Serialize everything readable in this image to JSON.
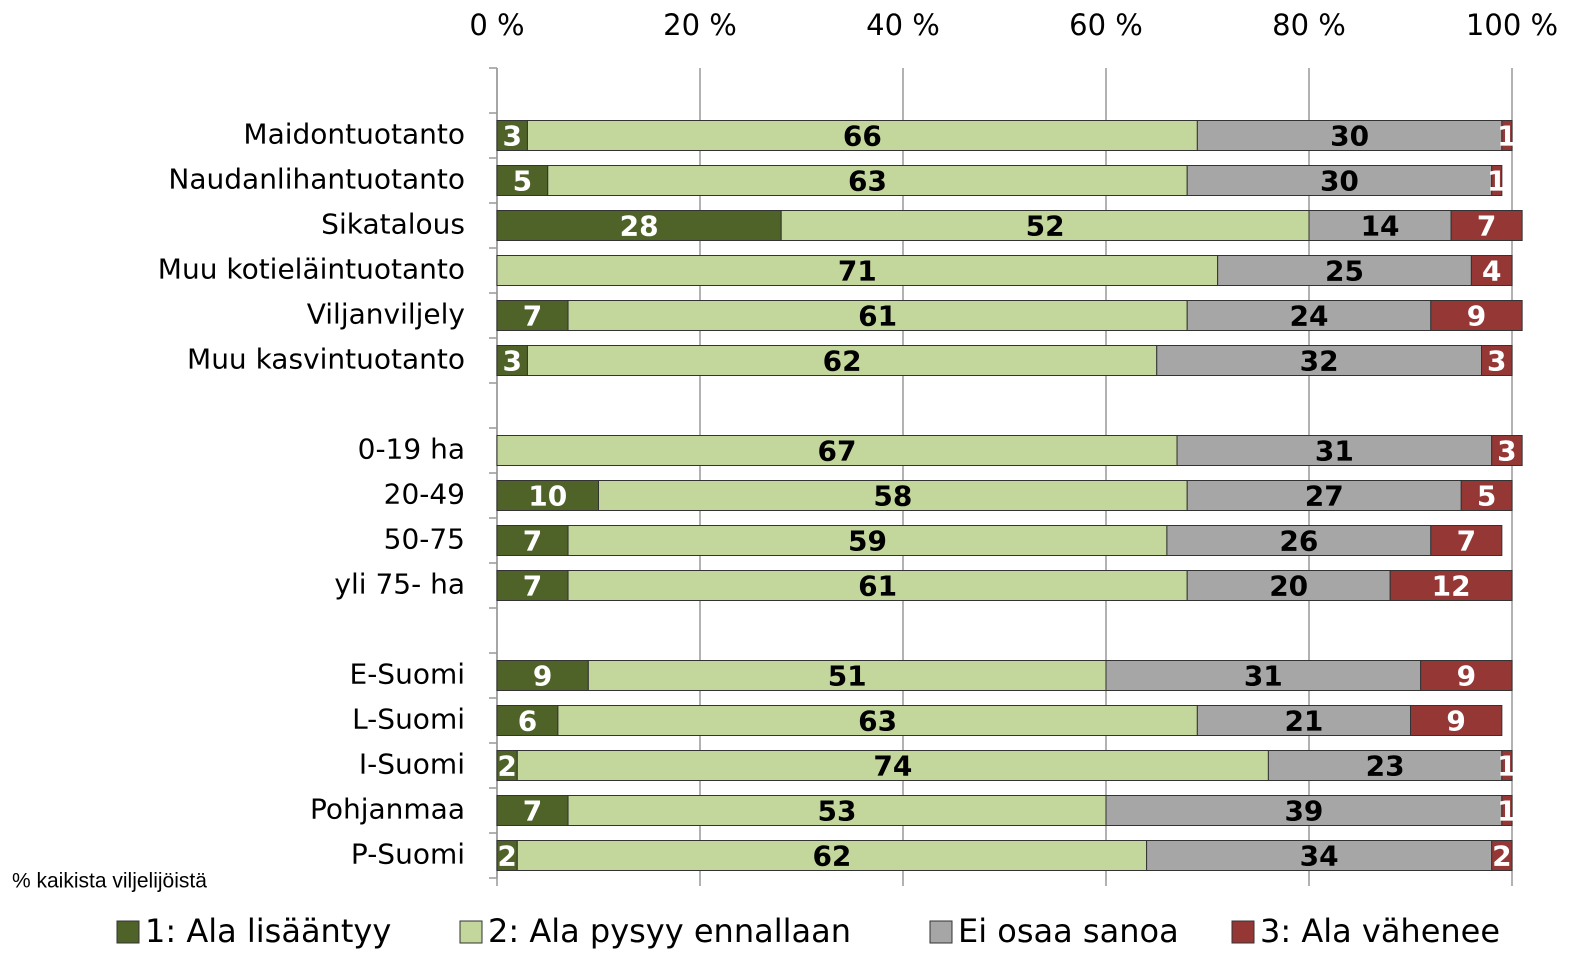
{
  "chart_data": {
    "type": "stacked-bar-horizontal",
    "categories": [
      null,
      "Maidontuotanto",
      "Naudanlihantuotanto",
      "Sikatalous",
      "Muu kotieläintuotanto",
      "Viljanviljely",
      "Muu kasvintuotanto",
      null,
      "0-19 ha",
      "20-49",
      "50-75",
      "yli 75- ha",
      null,
      "E-Suomi",
      "L-Suomi",
      "I-Suomi",
      "Pohjanmaa",
      "P-Suomi"
    ],
    "series": [
      {
        "name": "1: Ala lisääntyy",
        "color": "#4f6228",
        "label_color": "#ffffff",
        "values": [
          null,
          3,
          5,
          28,
          null,
          7,
          3,
          null,
          null,
          10,
          7,
          7,
          null,
          9,
          6,
          2,
          7,
          2
        ]
      },
      {
        "name": "2: Ala pysyy ennallaan",
        "color": "#c3d69b",
        "label_color": "#000000",
        "values": [
          null,
          66,
          63,
          52,
          71,
          61,
          62,
          null,
          67,
          58,
          59,
          61,
          null,
          51,
          63,
          74,
          53,
          62
        ]
      },
      {
        "name": "Ei osaa sanoa",
        "color": "#a6a6a6",
        "label_color": "#000000",
        "values": [
          null,
          30,
          30,
          14,
          25,
          24,
          32,
          null,
          31,
          27,
          26,
          20,
          null,
          31,
          21,
          23,
          39,
          34
        ]
      },
      {
        "name": "3: Ala vähenee",
        "color": "#953735",
        "label_color": "#ffffff",
        "values": [
          null,
          1,
          1,
          7,
          4,
          9,
          3,
          null,
          3,
          5,
          7,
          12,
          null,
          9,
          9,
          1,
          1,
          2
        ]
      }
    ],
    "xlim": [
      0,
      100
    ],
    "xticks": [
      {
        "value": 0,
        "label": "0 %"
      },
      {
        "value": 20,
        "label": "20 %"
      },
      {
        "value": 40,
        "label": "40 %"
      },
      {
        "value": 60,
        "label": "60 %"
      },
      {
        "value": 80,
        "label": "80 %"
      },
      {
        "value": 100,
        "label": "100 %"
      }
    ],
    "grid": true,
    "note": "% kaikista viljelijöistä",
    "legend": "bottom"
  }
}
